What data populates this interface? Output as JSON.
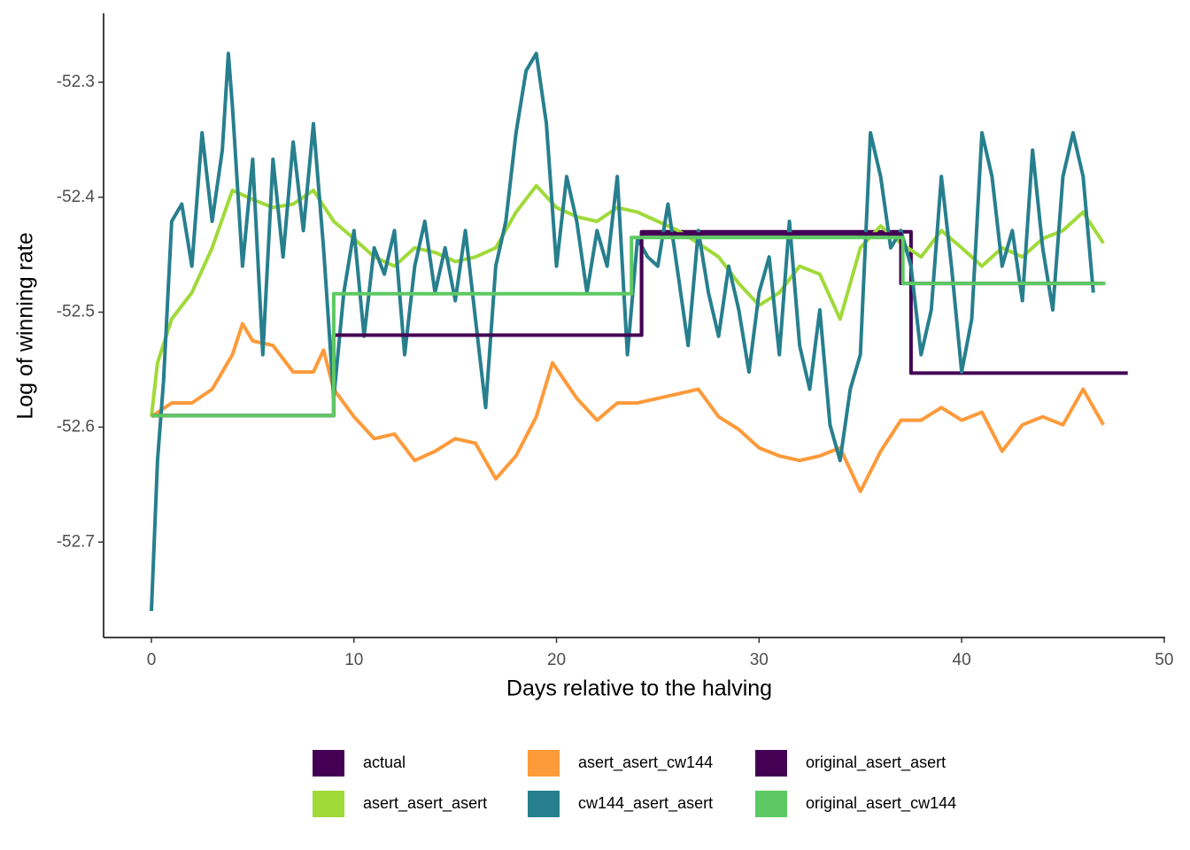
{
  "chart_data": {
    "type": "line",
    "x_label": "Days relative to the halving",
    "y_label": "Log of winning rate",
    "xlim": [
      -2.36,
      50.05
    ],
    "ylim": [
      -52.783,
      -52.24
    ],
    "xticks": [
      0,
      10,
      20,
      30,
      40,
      50
    ],
    "yticks": [
      -52.3,
      -52.4,
      -52.5,
      -52.6,
      -52.7
    ],
    "legend": "bottom",
    "grid": false,
    "series": [
      {
        "name": "actual",
        "color": "#440154",
        "x": [
          0,
          9,
          9,
          24.2,
          24.2,
          37.5,
          37.5,
          48.2
        ],
        "values": [
          -52.59,
          -52.59,
          -52.52,
          -52.52,
          -52.43,
          -52.43,
          -52.553,
          -52.553
        ]
      },
      {
        "name": "asert_asert_asert",
        "color": "#a0da39",
        "x": [
          0,
          0.3,
          1,
          2,
          3,
          4,
          5,
          6,
          7,
          8,
          9,
          10,
          11,
          12,
          13,
          14,
          15,
          16,
          17,
          18,
          19,
          20,
          21,
          22,
          23,
          24,
          25,
          26,
          27,
          28,
          29,
          30,
          31,
          32,
          33,
          34,
          35,
          36,
          37,
          38,
          39,
          40,
          41,
          42,
          43,
          44,
          45,
          46,
          47
        ],
        "values": [
          -52.591,
          -52.544,
          -52.506,
          -52.483,
          -52.444,
          -52.394,
          -52.402,
          -52.409,
          -52.406,
          -52.394,
          -52.421,
          -52.436,
          -52.452,
          -52.46,
          -52.444,
          -52.448,
          -52.456,
          -52.452,
          -52.444,
          -52.413,
          -52.39,
          -52.409,
          -52.417,
          -52.421,
          -52.409,
          -52.413,
          -52.421,
          -52.429,
          -52.44,
          -52.452,
          -52.475,
          -52.494,
          -52.483,
          -52.46,
          -52.467,
          -52.506,
          -52.444,
          -52.425,
          -52.44,
          -52.452,
          -52.429,
          -52.444,
          -52.46,
          -52.444,
          -52.452,
          -52.436,
          -52.429,
          -52.413,
          -52.44
        ]
      },
      {
        "name": "asert_asert_cw144",
        "color": "#fd9a3a",
        "x": [
          0,
          1,
          2,
          3,
          4,
          4.5,
          5,
          6,
          7,
          8,
          8.5,
          9,
          10,
          11,
          12,
          13,
          14,
          15,
          16,
          17,
          18,
          19,
          19.8,
          21,
          22,
          23,
          24,
          25,
          26,
          27,
          28,
          29,
          30,
          31,
          32,
          33,
          34,
          35,
          36,
          37,
          38,
          39,
          40,
          41,
          42,
          43,
          44,
          45,
          46,
          47
        ],
        "values": [
          -52.591,
          -52.579,
          -52.579,
          -52.567,
          -52.537,
          -52.51,
          -52.525,
          -52.529,
          -52.552,
          -52.552,
          -52.533,
          -52.567,
          -52.591,
          -52.61,
          -52.606,
          -52.629,
          -52.621,
          -52.61,
          -52.614,
          -52.645,
          -52.625,
          -52.591,
          -52.544,
          -52.575,
          -52.594,
          -52.579,
          -52.579,
          -52.575,
          -52.571,
          -52.567,
          -52.591,
          -52.602,
          -52.618,
          -52.625,
          -52.629,
          -52.625,
          -52.618,
          -52.656,
          -52.621,
          -52.594,
          -52.594,
          -52.583,
          -52.594,
          -52.587,
          -52.621,
          -52.598,
          -52.591,
          -52.598,
          -52.567,
          -52.598
        ]
      },
      {
        "name": "cw144_asert_asert",
        "color": "#277f8e",
        "x": [
          0,
          0.3,
          0.6,
          1,
          1.5,
          2,
          2.5,
          3,
          3.5,
          3.8,
          4,
          4.5,
          5,
          5.5,
          6,
          6.5,
          7,
          7.5,
          8,
          8.5,
          9,
          9.5,
          10,
          10.5,
          11,
          11.5,
          12,
          12.5,
          13,
          13.5,
          14,
          14.5,
          15,
          15.5,
          16,
          16.5,
          17,
          17.5,
          18,
          18.5,
          19,
          19.5,
          20,
          20.5,
          21,
          21.5,
          22,
          22.5,
          23,
          23.5,
          24,
          24.5,
          25,
          25.5,
          26,
          26.5,
          27,
          27.5,
          28,
          28.5,
          29,
          29.5,
          30,
          30.5,
          31,
          31.5,
          32,
          32.5,
          33,
          33.5,
          34,
          34.5,
          35,
          35.5,
          36,
          36.5,
          37,
          37.5,
          38,
          38.5,
          39,
          39.5,
          40,
          40.5,
          41,
          41.5,
          42,
          42.5,
          43,
          43.5,
          44,
          44.5,
          45,
          45.5,
          46,
          46.5
        ],
        "values": [
          -52.76,
          -52.629,
          -52.56,
          -52.421,
          -52.406,
          -52.46,
          -52.344,
          -52.421,
          -52.359,
          -52.275,
          -52.321,
          -52.46,
          -52.367,
          -52.537,
          -52.367,
          -52.452,
          -52.352,
          -52.429,
          -52.336,
          -52.444,
          -52.575,
          -52.483,
          -52.429,
          -52.521,
          -52.444,
          -52.467,
          -52.429,
          -52.537,
          -52.46,
          -52.421,
          -52.483,
          -52.444,
          -52.49,
          -52.429,
          -52.506,
          -52.583,
          -52.46,
          -52.421,
          -52.344,
          -52.29,
          -52.275,
          -52.336,
          -52.46,
          -52.382,
          -52.421,
          -52.483,
          -52.429,
          -52.46,
          -52.382,
          -52.537,
          -52.436,
          -52.452,
          -52.46,
          -52.406,
          -52.467,
          -52.529,
          -52.429,
          -52.483,
          -52.521,
          -52.46,
          -52.498,
          -52.552,
          -52.483,
          -52.452,
          -52.537,
          -52.421,
          -52.529,
          -52.567,
          -52.498,
          -52.598,
          -52.629,
          -52.567,
          -52.537,
          -52.344,
          -52.382,
          -52.444,
          -52.429,
          -52.46,
          -52.537,
          -52.498,
          -52.382,
          -52.46,
          -52.552,
          -52.506,
          -52.344,
          -52.382,
          -52.46,
          -52.429,
          -52.49,
          -52.359,
          -52.444,
          -52.498,
          -52.382,
          -52.344,
          -52.382,
          -52.483
        ]
      },
      {
        "name": "original_asert_asert",
        "color": "#440154",
        "x": [
          0,
          9,
          9,
          24.2,
          24.2,
          37,
          37,
          47
        ],
        "values": [
          -52.59,
          -52.59,
          -52.52,
          -52.52,
          -52.432,
          -52.432,
          -52.475,
          -52.475
        ]
      },
      {
        "name": "original_asert_cw144",
        "color": "#5ec962",
        "x": [
          0,
          9,
          9,
          23.7,
          23.7,
          37.1,
          37.1,
          47.1
        ],
        "values": [
          -52.59,
          -52.59,
          -52.484,
          -52.484,
          -52.435,
          -52.435,
          -52.475,
          -52.475
        ]
      }
    ]
  }
}
